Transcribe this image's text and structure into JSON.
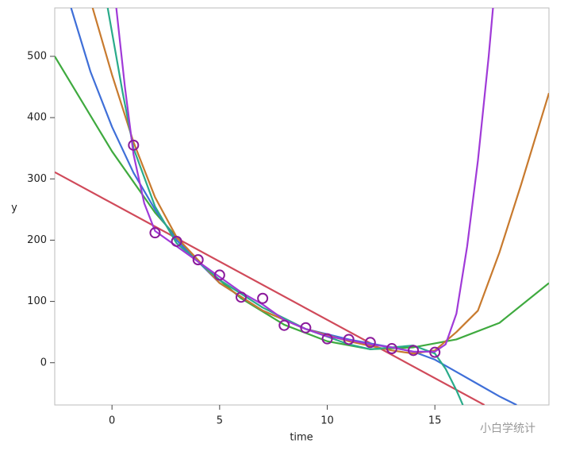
{
  "chart_data": {
    "type": "scatter",
    "xlabel": "time",
    "ylabel": "y",
    "xlim": [
      -2.66,
      20.3
    ],
    "ylim": [
      -69,
      579
    ],
    "xticks": [
      0,
      5,
      10,
      15
    ],
    "yticks": [
      0,
      100,
      200,
      300,
      400,
      500
    ],
    "watermark": "小白学统计",
    "points": {
      "color": "#8b1a9b",
      "x": [
        1,
        2,
        3,
        4,
        5,
        6,
        7,
        8,
        9,
        10,
        11,
        12,
        13,
        14,
        15
      ],
      "values": [
        355,
        212,
        198,
        168,
        143,
        107,
        105,
        61,
        57,
        39,
        38,
        33,
        23,
        20,
        17
      ]
    },
    "series": [
      {
        "color": "#d04a5a",
        "x": [
          -2.66,
          17.3
        ],
        "values": [
          311,
          -69
        ]
      },
      {
        "color": "#3faa3f",
        "x": [
          -2.66,
          0,
          2,
          4,
          6,
          8,
          10,
          12,
          14,
          16,
          18,
          20.3
        ],
        "values": [
          500,
          345,
          245,
          165,
          105,
          62,
          35,
          22,
          25,
          38,
          65,
          130
        ]
      },
      {
        "color": "#3f6fd8",
        "x": [
          -1.9,
          -1,
          0,
          1,
          2,
          3,
          5,
          7,
          9,
          11,
          13,
          14,
          15,
          16,
          17,
          18,
          18.8
        ],
        "values": [
          579,
          475,
          385,
          310,
          250,
          200,
          130,
          85,
          55,
          38,
          25,
          18,
          5,
          -15,
          -35,
          -55,
          -69
        ]
      },
      {
        "color": "#c87a2e",
        "x": [
          -0.9,
          0,
          1,
          2,
          3,
          5,
          7,
          9,
          11,
          13,
          14,
          15,
          16,
          17,
          18,
          19,
          20.3
        ],
        "values": [
          579,
          470,
          360,
          270,
          205,
          130,
          85,
          55,
          35,
          20,
          15,
          20,
          50,
          85,
          180,
          290,
          440
        ]
      },
      {
        "color": "#2aab8a",
        "x": [
          -0.2,
          0.5,
          1,
          2,
          3,
          5,
          7,
          9,
          11,
          12,
          13,
          14,
          15,
          15.5,
          16,
          16.3
        ],
        "values": [
          579,
          440,
          350,
          255,
          195,
          135,
          90,
          55,
          30,
          22,
          25,
          28,
          15,
          -10,
          -45,
          -69
        ]
      },
      {
        "color": "#a03ad8",
        "x": [
          0.2,
          0.6,
          1,
          1.5,
          2,
          3,
          4,
          5,
          6,
          7,
          8,
          9,
          10,
          11,
          12,
          13,
          14,
          15,
          15.5,
          16,
          16.5,
          17,
          17.5,
          17.7
        ],
        "values": [
          579,
          450,
          340,
          260,
          215,
          190,
          165,
          140,
          115,
          95,
          70,
          55,
          43,
          37,
          30,
          25,
          18,
          18,
          30,
          80,
          190,
          330,
          500,
          579
        ]
      }
    ]
  }
}
